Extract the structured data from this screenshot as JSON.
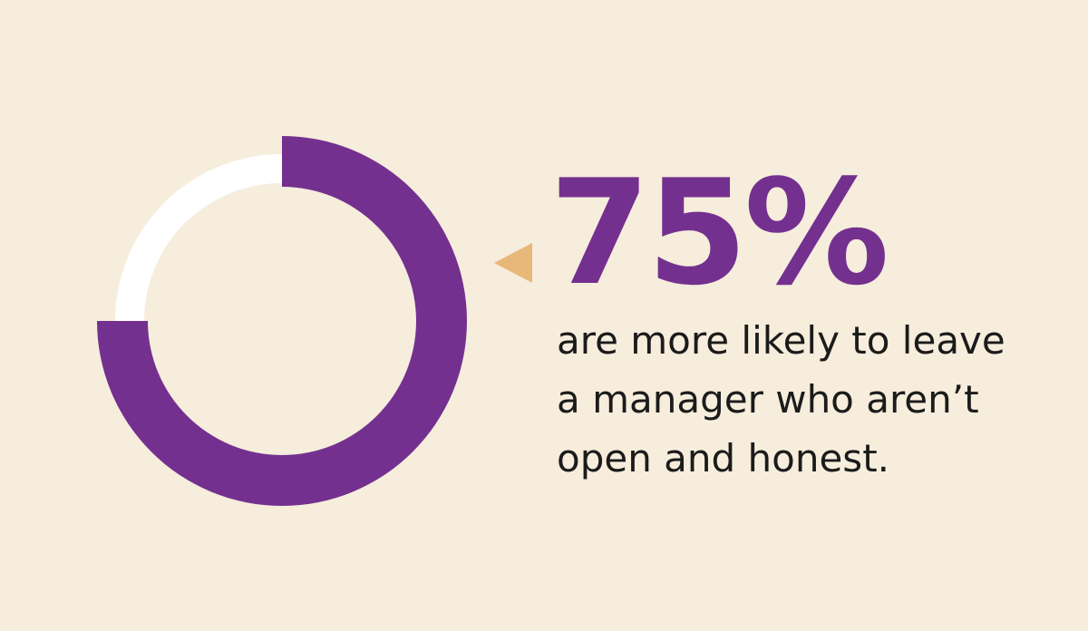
{
  "chart_data": {
    "type": "donut",
    "values": [
      75
    ],
    "value_labels": [
      "75%"
    ],
    "color": "#74308f",
    "track_color": "#ffffff",
    "annotation_lines": [
      "are more likely to leave",
      "a manager who aren’t",
      "open and honest."
    ]
  }
}
